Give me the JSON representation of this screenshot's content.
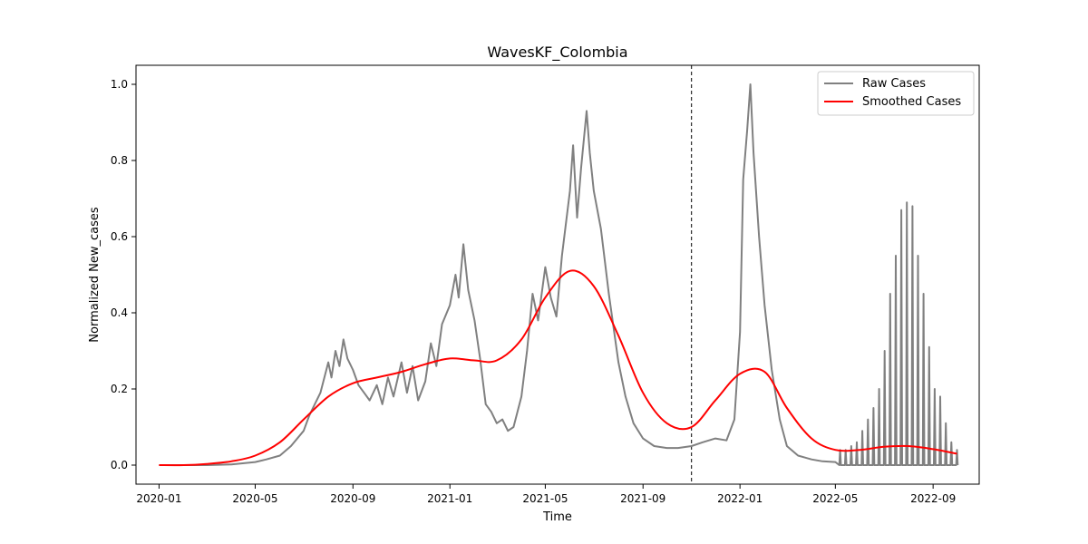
{
  "chart_data": {
    "type": "line",
    "title": "WavesKF_Colombia",
    "xlabel": "Time",
    "ylabel": "Normalized New_cases",
    "xlim": [
      "2019-12-03",
      "2022-10-29"
    ],
    "ylim": [
      -0.05,
      1.05
    ],
    "x_ticks": [
      "2020-01",
      "2020-05",
      "2020-09",
      "2021-01",
      "2021-05",
      "2021-09",
      "2022-01",
      "2022-05",
      "2022-09"
    ],
    "y_ticks": [
      "0.0",
      "0.2",
      "0.4",
      "0.6",
      "0.8",
      "1.0"
    ],
    "vline": {
      "x": "2021-11-01",
      "style": "dashed",
      "color": "#000000"
    },
    "legend": {
      "position": "top-right",
      "entries": [
        "Raw Cases",
        "Smoothed Cases"
      ]
    },
    "series": [
      {
        "name": "Raw Cases",
        "color": "#808080",
        "points": [
          [
            "2020-01-01",
            0.0
          ],
          [
            "2020-03-01",
            0.0
          ],
          [
            "2020-04-01",
            0.002
          ],
          [
            "2020-05-01",
            0.008
          ],
          [
            "2020-05-15",
            0.015
          ],
          [
            "2020-06-01",
            0.025
          ],
          [
            "2020-06-15",
            0.05
          ],
          [
            "2020-07-01",
            0.09
          ],
          [
            "2020-07-08",
            0.13
          ],
          [
            "2020-07-15",
            0.16
          ],
          [
            "2020-07-22",
            0.19
          ],
          [
            "2020-08-01",
            0.27
          ],
          [
            "2020-08-05",
            0.23
          ],
          [
            "2020-08-10",
            0.3
          ],
          [
            "2020-08-15",
            0.26
          ],
          [
            "2020-08-20",
            0.33
          ],
          [
            "2020-08-25",
            0.28
          ],
          [
            "2020-09-01",
            0.25
          ],
          [
            "2020-09-08",
            0.21
          ],
          [
            "2020-09-15",
            0.19
          ],
          [
            "2020-09-22",
            0.17
          ],
          [
            "2020-10-01",
            0.21
          ],
          [
            "2020-10-08",
            0.16
          ],
          [
            "2020-10-15",
            0.23
          ],
          [
            "2020-10-22",
            0.18
          ],
          [
            "2020-11-01",
            0.27
          ],
          [
            "2020-11-08",
            0.19
          ],
          [
            "2020-11-15",
            0.26
          ],
          [
            "2020-11-22",
            0.17
          ],
          [
            "2020-12-01",
            0.22
          ],
          [
            "2020-12-08",
            0.32
          ],
          [
            "2020-12-15",
            0.26
          ],
          [
            "2020-12-22",
            0.37
          ],
          [
            "2021-01-01",
            0.42
          ],
          [
            "2021-01-08",
            0.5
          ],
          [
            "2021-01-12",
            0.44
          ],
          [
            "2021-01-18",
            0.58
          ],
          [
            "2021-01-24",
            0.46
          ],
          [
            "2021-02-01",
            0.38
          ],
          [
            "2021-02-08",
            0.28
          ],
          [
            "2021-02-15",
            0.16
          ],
          [
            "2021-02-22",
            0.14
          ],
          [
            "2021-03-01",
            0.11
          ],
          [
            "2021-03-08",
            0.12
          ],
          [
            "2021-03-15",
            0.09
          ],
          [
            "2021-03-22",
            0.1
          ],
          [
            "2021-04-01",
            0.18
          ],
          [
            "2021-04-08",
            0.3
          ],
          [
            "2021-04-15",
            0.45
          ],
          [
            "2021-04-22",
            0.38
          ],
          [
            "2021-05-01",
            0.52
          ],
          [
            "2021-05-08",
            0.44
          ],
          [
            "2021-05-15",
            0.39
          ],
          [
            "2021-05-22",
            0.55
          ],
          [
            "2021-06-01",
            0.72
          ],
          [
            "2021-06-05",
            0.84
          ],
          [
            "2021-06-10",
            0.65
          ],
          [
            "2021-06-15",
            0.78
          ],
          [
            "2021-06-22",
            0.93
          ],
          [
            "2021-06-26",
            0.82
          ],
          [
            "2021-07-01",
            0.72
          ],
          [
            "2021-07-10",
            0.62
          ],
          [
            "2021-07-20",
            0.45
          ],
          [
            "2021-08-01",
            0.27
          ],
          [
            "2021-08-10",
            0.18
          ],
          [
            "2021-08-20",
            0.11
          ],
          [
            "2021-09-01",
            0.07
          ],
          [
            "2021-09-15",
            0.05
          ],
          [
            "2021-10-01",
            0.045
          ],
          [
            "2021-10-15",
            0.045
          ],
          [
            "2021-11-01",
            0.05
          ],
          [
            "2021-11-15",
            0.06
          ],
          [
            "2021-12-01",
            0.07
          ],
          [
            "2021-12-15",
            0.065
          ],
          [
            "2021-12-25",
            0.12
          ],
          [
            "2022-01-01",
            0.35
          ],
          [
            "2022-01-05",
            0.75
          ],
          [
            "2022-01-10",
            0.88
          ],
          [
            "2022-01-14",
            1.0
          ],
          [
            "2022-01-18",
            0.82
          ],
          [
            "2022-01-25",
            0.6
          ],
          [
            "2022-02-01",
            0.42
          ],
          [
            "2022-02-10",
            0.25
          ],
          [
            "2022-02-20",
            0.12
          ],
          [
            "2022-03-01",
            0.05
          ],
          [
            "2022-03-15",
            0.025
          ],
          [
            "2022-04-01",
            0.015
          ],
          [
            "2022-04-15",
            0.01
          ],
          [
            "2022-05-01",
            0.008
          ]
        ]
      },
      {
        "name": "Smoothed Cases",
        "color": "#ff0000",
        "points": [
          [
            "2020-01-01",
            0.0
          ],
          [
            "2020-02-01",
            0.0
          ],
          [
            "2020-03-01",
            0.003
          ],
          [
            "2020-04-01",
            0.01
          ],
          [
            "2020-05-01",
            0.025
          ],
          [
            "2020-06-01",
            0.06
          ],
          [
            "2020-07-01",
            0.12
          ],
          [
            "2020-08-01",
            0.18
          ],
          [
            "2020-09-01",
            0.215
          ],
          [
            "2020-10-01",
            0.23
          ],
          [
            "2020-11-01",
            0.245
          ],
          [
            "2020-12-01",
            0.265
          ],
          [
            "2021-01-01",
            0.28
          ],
          [
            "2021-02-01",
            0.275
          ],
          [
            "2021-03-01",
            0.275
          ],
          [
            "2021-04-01",
            0.33
          ],
          [
            "2021-05-01",
            0.44
          ],
          [
            "2021-06-01",
            0.51
          ],
          [
            "2021-07-01",
            0.47
          ],
          [
            "2021-08-01",
            0.34
          ],
          [
            "2021-09-01",
            0.19
          ],
          [
            "2021-10-01",
            0.11
          ],
          [
            "2021-11-01",
            0.1
          ],
          [
            "2021-12-01",
            0.17
          ],
          [
            "2022-01-01",
            0.24
          ],
          [
            "2022-02-01",
            0.245
          ],
          [
            "2022-03-01",
            0.15
          ],
          [
            "2022-04-01",
            0.07
          ],
          [
            "2022-05-01",
            0.04
          ],
          [
            "2022-06-01",
            0.04
          ],
          [
            "2022-07-01",
            0.048
          ],
          [
            "2022-08-01",
            0.05
          ],
          [
            "2022-09-01",
            0.042
          ],
          [
            "2022-10-01",
            0.03
          ]
        ],
        "smooth": true
      }
    ],
    "raw_spikes": {
      "series": "Raw Cases",
      "start": "2022-05-01",
      "end": "2022-10-01",
      "step_days": 7,
      "peaks": [
        0.04,
        0.04,
        0.05,
        0.06,
        0.09,
        0.12,
        0.15,
        0.2,
        0.3,
        0.45,
        0.55,
        0.67,
        0.69,
        0.68,
        0.55,
        0.45,
        0.31,
        0.2,
        0.18,
        0.11,
        0.06,
        0.04
      ]
    }
  }
}
